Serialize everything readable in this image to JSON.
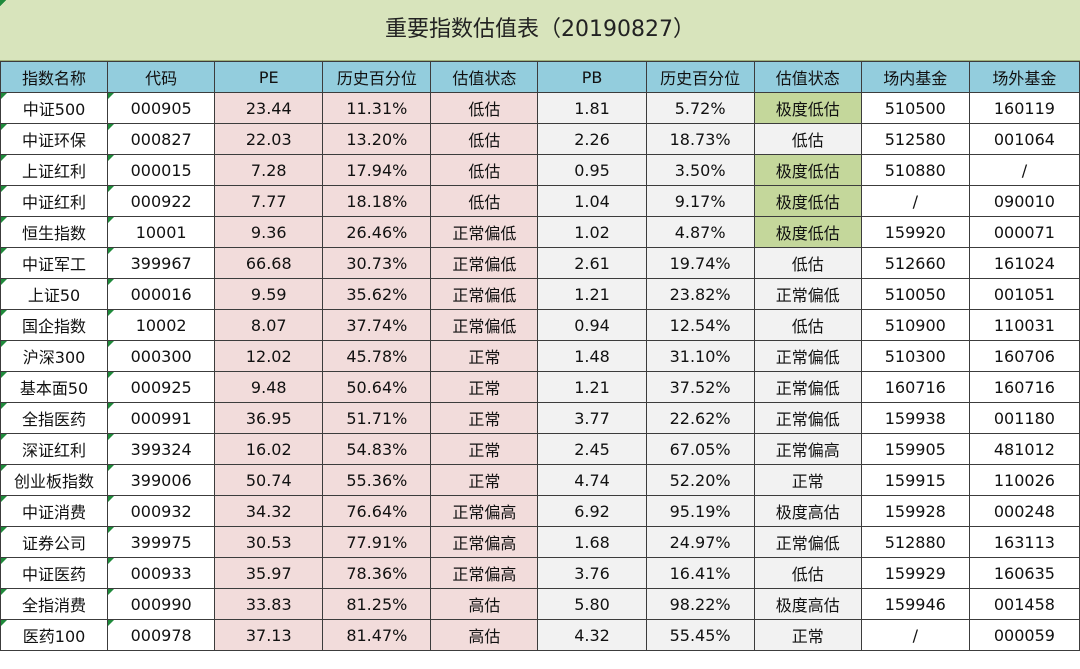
{
  "title": "重要指数估值表（20190827）",
  "headers": [
    "指数名称",
    "代码",
    "PE",
    "历史百分位",
    "估值状态",
    "PB",
    "历史百分位",
    "估值状态",
    "场内基金",
    "场外基金"
  ],
  "highlight_color": "#c4d79b",
  "rows": [
    {
      "name": "中证500",
      "code": "000905",
      "pe": "23.44",
      "pe_pct": "11.31%",
      "pe_state": "低估",
      "pb": "1.81",
      "pb_pct": "5.72%",
      "pb_state": "极度低估",
      "hl": true,
      "etf": "510500",
      "otc": "160119"
    },
    {
      "name": "中证环保",
      "code": "000827",
      "pe": "22.03",
      "pe_pct": "13.20%",
      "pe_state": "低估",
      "pb": "2.26",
      "pb_pct": "18.73%",
      "pb_state": "低估",
      "hl": false,
      "etf": "512580",
      "otc": "001064"
    },
    {
      "name": "上证红利",
      "code": "000015",
      "pe": "7.28",
      "pe_pct": "17.94%",
      "pe_state": "低估",
      "pb": "0.95",
      "pb_pct": "3.50%",
      "pb_state": "极度低估",
      "hl": true,
      "etf": "510880",
      "otc": "/"
    },
    {
      "name": "中证红利",
      "code": "000922",
      "pe": "7.77",
      "pe_pct": "18.18%",
      "pe_state": "低估",
      "pb": "1.04",
      "pb_pct": "9.17%",
      "pb_state": "极度低估",
      "hl": true,
      "etf": "/",
      "otc": "090010"
    },
    {
      "name": "恒生指数",
      "code": "10001",
      "pe": "9.36",
      "pe_pct": "26.46%",
      "pe_state": "正常偏低",
      "pb": "1.02",
      "pb_pct": "4.87%",
      "pb_state": "极度低估",
      "hl": true,
      "etf": "159920",
      "otc": "000071"
    },
    {
      "name": "中证军工",
      "code": "399967",
      "pe": "66.68",
      "pe_pct": "30.73%",
      "pe_state": "正常偏低",
      "pb": "2.61",
      "pb_pct": "19.74%",
      "pb_state": "低估",
      "hl": false,
      "etf": "512660",
      "otc": "161024"
    },
    {
      "name": "上证50",
      "code": "000016",
      "pe": "9.59",
      "pe_pct": "35.62%",
      "pe_state": "正常偏低",
      "pb": "1.21",
      "pb_pct": "23.82%",
      "pb_state": "正常偏低",
      "hl": false,
      "etf": "510050",
      "otc": "001051"
    },
    {
      "name": "国企指数",
      "code": "10002",
      "pe": "8.07",
      "pe_pct": "37.74%",
      "pe_state": "正常偏低",
      "pb": "0.94",
      "pb_pct": "12.54%",
      "pb_state": "低估",
      "hl": false,
      "etf": "510900",
      "otc": "110031"
    },
    {
      "name": "沪深300",
      "code": "000300",
      "pe": "12.02",
      "pe_pct": "45.78%",
      "pe_state": "正常",
      "pb": "1.48",
      "pb_pct": "31.10%",
      "pb_state": "正常偏低",
      "hl": false,
      "etf": "510300",
      "otc": "160706"
    },
    {
      "name": "基本面50",
      "code": "000925",
      "pe": "9.48",
      "pe_pct": "50.64%",
      "pe_state": "正常",
      "pb": "1.21",
      "pb_pct": "37.52%",
      "pb_state": "正常偏低",
      "hl": false,
      "etf": "160716",
      "otc": "160716"
    },
    {
      "name": "全指医药",
      "code": "000991",
      "pe": "36.95",
      "pe_pct": "51.71%",
      "pe_state": "正常",
      "pb": "3.77",
      "pb_pct": "22.62%",
      "pb_state": "正常偏低",
      "hl": false,
      "etf": "159938",
      "otc": "001180"
    },
    {
      "name": "深证红利",
      "code": "399324",
      "pe": "16.02",
      "pe_pct": "54.83%",
      "pe_state": "正常",
      "pb": "2.45",
      "pb_pct": "67.05%",
      "pb_state": "正常偏高",
      "hl": false,
      "etf": "159905",
      "otc": "481012"
    },
    {
      "name": "创业板指数",
      "code": "399006",
      "pe": "50.74",
      "pe_pct": "55.36%",
      "pe_state": "正常",
      "pb": "4.74",
      "pb_pct": "52.20%",
      "pb_state": "正常",
      "hl": false,
      "etf": "159915",
      "otc": "110026"
    },
    {
      "name": "中证消费",
      "code": "000932",
      "pe": "34.32",
      "pe_pct": "76.64%",
      "pe_state": "正常偏高",
      "pb": "6.92",
      "pb_pct": "95.19%",
      "pb_state": "极度高估",
      "hl": false,
      "etf": "159928",
      "otc": "000248"
    },
    {
      "name": "证券公司",
      "code": "399975",
      "pe": "30.53",
      "pe_pct": "77.91%",
      "pe_state": "正常偏高",
      "pb": "1.68",
      "pb_pct": "24.97%",
      "pb_state": "正常偏低",
      "hl": false,
      "etf": "512880",
      "otc": "163113"
    },
    {
      "name": "中证医药",
      "code": "000933",
      "pe": "35.97",
      "pe_pct": "78.36%",
      "pe_state": "正常偏高",
      "pb": "3.76",
      "pb_pct": "16.41%",
      "pb_state": "低估",
      "hl": false,
      "etf": "159929",
      "otc": "160635"
    },
    {
      "name": "全指消费",
      "code": "000990",
      "pe": "33.83",
      "pe_pct": "81.25%",
      "pe_state": "高估",
      "pb": "5.80",
      "pb_pct": "98.22%",
      "pb_state": "极度高估",
      "hl": false,
      "etf": "159946",
      "otc": "001458"
    },
    {
      "name": "医药100",
      "code": "000978",
      "pe": "37.13",
      "pe_pct": "81.47%",
      "pe_state": "高估",
      "pb": "4.32",
      "pb_pct": "55.45%",
      "pb_state": "正常",
      "hl": false,
      "etf": "/",
      "otc": "000059"
    }
  ]
}
